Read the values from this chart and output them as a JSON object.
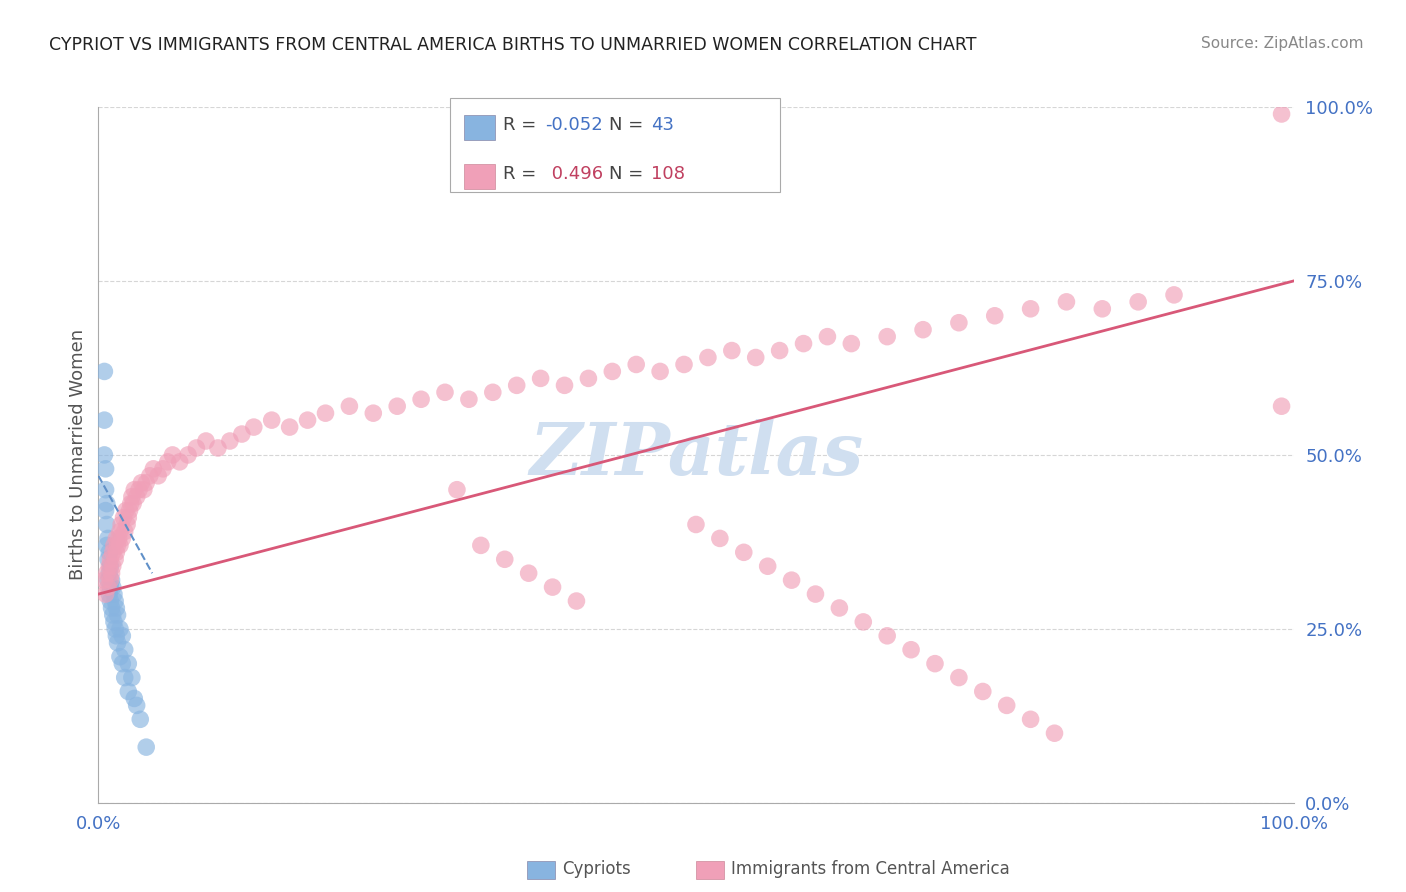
{
  "title": "CYPRIOT VS IMMIGRANTS FROM CENTRAL AMERICA BIRTHS TO UNMARRIED WOMEN CORRELATION CHART",
  "source": "Source: ZipAtlas.com",
  "ylabel": "Births to Unmarried Women",
  "background_color": "#ffffff",
  "grid_color": "#cccccc",
  "blue_R": -0.052,
  "blue_N": 43,
  "pink_R": 0.496,
  "pink_N": 108,
  "blue_color": "#88b4e0",
  "pink_color": "#f0a0b8",
  "blue_line_color": "#6090c8",
  "pink_line_color": "#d85878",
  "blue_legend_color": "#4472c4",
  "pink_legend_color": "#c04060",
  "axis_tick_color": "#4472c4",
  "watermark_color": "#d0dff0",
  "xlim": [
    0.0,
    1.0
  ],
  "ylim": [
    0.0,
    1.0
  ],
  "ytick_labels": [
    "0.0%",
    "25.0%",
    "50.0%",
    "75.0%",
    "100.0%"
  ],
  "ytick_values": [
    0.0,
    0.25,
    0.5,
    0.75,
    1.0
  ],
  "xtick_labels": [
    "0.0%",
    "100.0%"
  ],
  "xtick_values": [
    0.0,
    1.0
  ],
  "blue_scatter_x": [
    0.005,
    0.005,
    0.005,
    0.006,
    0.006,
    0.006,
    0.007,
    0.007,
    0.007,
    0.008,
    0.008,
    0.008,
    0.009,
    0.009,
    0.009,
    0.01,
    0.01,
    0.01,
    0.011,
    0.011,
    0.012,
    0.012,
    0.013,
    0.013,
    0.014,
    0.014,
    0.015,
    0.015,
    0.016,
    0.016,
    0.018,
    0.018,
    0.02,
    0.02,
    0.022,
    0.022,
    0.025,
    0.025,
    0.028,
    0.03,
    0.032,
    0.035,
    0.04
  ],
  "blue_scatter_y": [
    0.62,
    0.55,
    0.5,
    0.48,
    0.45,
    0.42,
    0.43,
    0.4,
    0.37,
    0.38,
    0.35,
    0.32,
    0.36,
    0.33,
    0.3,
    0.34,
    0.31,
    0.29,
    0.32,
    0.28,
    0.31,
    0.27,
    0.3,
    0.26,
    0.29,
    0.25,
    0.28,
    0.24,
    0.27,
    0.23,
    0.25,
    0.21,
    0.24,
    0.2,
    0.22,
    0.18,
    0.2,
    0.16,
    0.18,
    0.15,
    0.14,
    0.12,
    0.08
  ],
  "pink_scatter_x": [
    0.005,
    0.006,
    0.007,
    0.008,
    0.009,
    0.01,
    0.01,
    0.011,
    0.012,
    0.012,
    0.013,
    0.014,
    0.015,
    0.015,
    0.016,
    0.017,
    0.018,
    0.018,
    0.019,
    0.02,
    0.021,
    0.022,
    0.023,
    0.024,
    0.025,
    0.026,
    0.027,
    0.028,
    0.029,
    0.03,
    0.032,
    0.034,
    0.036,
    0.038,
    0.04,
    0.043,
    0.046,
    0.05,
    0.054,
    0.058,
    0.062,
    0.068,
    0.075,
    0.082,
    0.09,
    0.1,
    0.11,
    0.12,
    0.13,
    0.145,
    0.16,
    0.175,
    0.19,
    0.21,
    0.23,
    0.25,
    0.27,
    0.29,
    0.31,
    0.33,
    0.35,
    0.37,
    0.39,
    0.41,
    0.43,
    0.45,
    0.47,
    0.49,
    0.51,
    0.53,
    0.55,
    0.57,
    0.59,
    0.61,
    0.63,
    0.66,
    0.69,
    0.72,
    0.75,
    0.78,
    0.81,
    0.84,
    0.87,
    0.9,
    0.3,
    0.32,
    0.34,
    0.36,
    0.38,
    0.4,
    0.5,
    0.52,
    0.54,
    0.56,
    0.58,
    0.6,
    0.62,
    0.64,
    0.66,
    0.68,
    0.7,
    0.72,
    0.74,
    0.76,
    0.78,
    0.8,
    0.99,
    0.99
  ],
  "pink_scatter_y": [
    0.32,
    0.3,
    0.33,
    0.31,
    0.34,
    0.32,
    0.35,
    0.33,
    0.36,
    0.34,
    0.37,
    0.35,
    0.38,
    0.36,
    0.37,
    0.38,
    0.39,
    0.37,
    0.4,
    0.38,
    0.41,
    0.39,
    0.42,
    0.4,
    0.41,
    0.42,
    0.43,
    0.44,
    0.43,
    0.45,
    0.44,
    0.45,
    0.46,
    0.45,
    0.46,
    0.47,
    0.48,
    0.47,
    0.48,
    0.49,
    0.5,
    0.49,
    0.5,
    0.51,
    0.52,
    0.51,
    0.52,
    0.53,
    0.54,
    0.55,
    0.54,
    0.55,
    0.56,
    0.57,
    0.56,
    0.57,
    0.58,
    0.59,
    0.58,
    0.59,
    0.6,
    0.61,
    0.6,
    0.61,
    0.62,
    0.63,
    0.62,
    0.63,
    0.64,
    0.65,
    0.64,
    0.65,
    0.66,
    0.67,
    0.66,
    0.67,
    0.68,
    0.69,
    0.7,
    0.71,
    0.72,
    0.71,
    0.72,
    0.73,
    0.45,
    0.37,
    0.35,
    0.33,
    0.31,
    0.29,
    0.4,
    0.38,
    0.36,
    0.34,
    0.32,
    0.3,
    0.28,
    0.26,
    0.24,
    0.22,
    0.2,
    0.18,
    0.16,
    0.14,
    0.12,
    0.1,
    0.57,
    0.99
  ],
  "blue_line_x": [
    0.0,
    0.045
  ],
  "blue_line_y": [
    0.47,
    0.33
  ],
  "pink_line_x": [
    0.0,
    1.0
  ],
  "pink_line_y": [
    0.3,
    0.75
  ]
}
